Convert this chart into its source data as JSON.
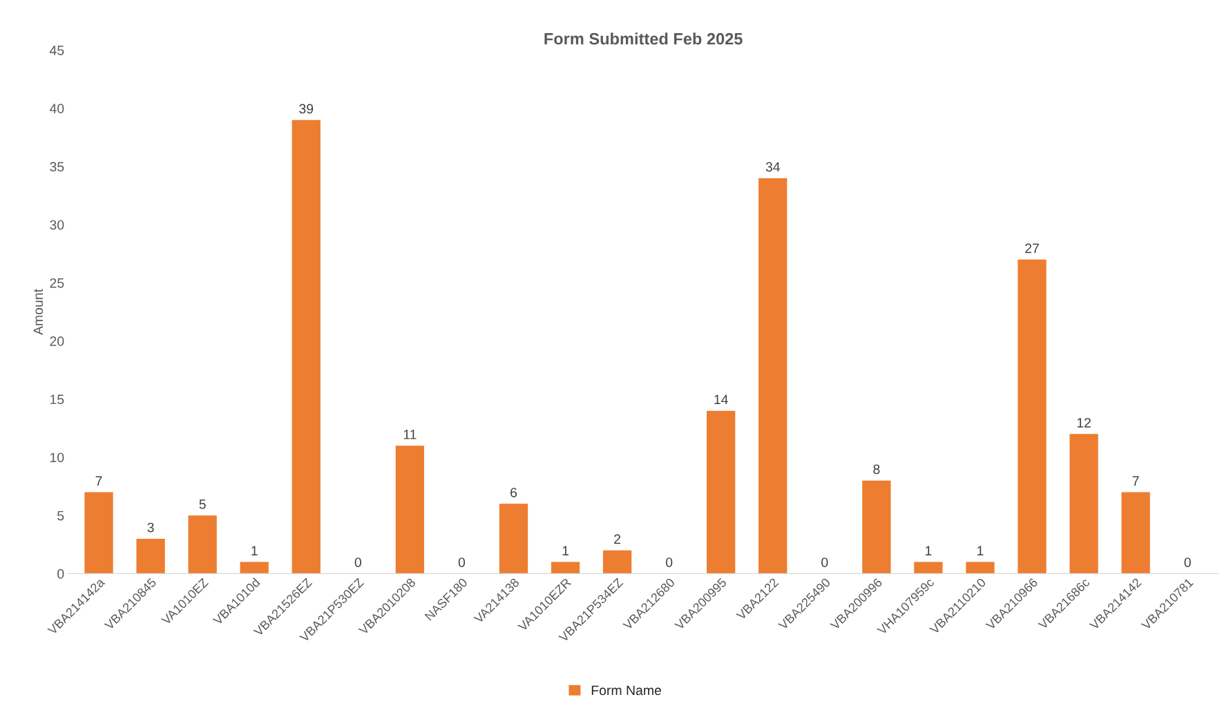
{
  "chart_data": {
    "type": "bar",
    "title": "Form Submitted Feb 2025",
    "ylabel": "Amount",
    "categories": [
      "VBA214142a",
      "VBA210845",
      "VA1010EZ",
      "VBA1010d",
      "VBA21526EZ",
      "VBA21P530EZ",
      "VBA2010208",
      "NASF180",
      "VA214138",
      "VA1010EZR",
      "VBA21P534EZ",
      "VBA212680",
      "VBA200995",
      "VBA2122",
      "VBA225490",
      "VBA200996",
      "VHA107959c",
      "VBA2110210",
      "VBA210966",
      "VBA21686c",
      "VBA214142",
      "VBA210781"
    ],
    "series": [
      {
        "name": "Form Name",
        "color": "#ed7d31",
        "values": [
          7,
          3,
          5,
          1,
          39,
          0,
          11,
          0,
          6,
          1,
          2,
          0,
          14,
          34,
          0,
          8,
          1,
          1,
          27,
          12,
          7,
          0
        ]
      }
    ],
    "ylim": [
      0,
      45
    ],
    "yticks": [
      0,
      5,
      10,
      15,
      20,
      25,
      30,
      35,
      40,
      45
    ],
    "grid": false,
    "legend": "bottom",
    "data_labels": true
  }
}
